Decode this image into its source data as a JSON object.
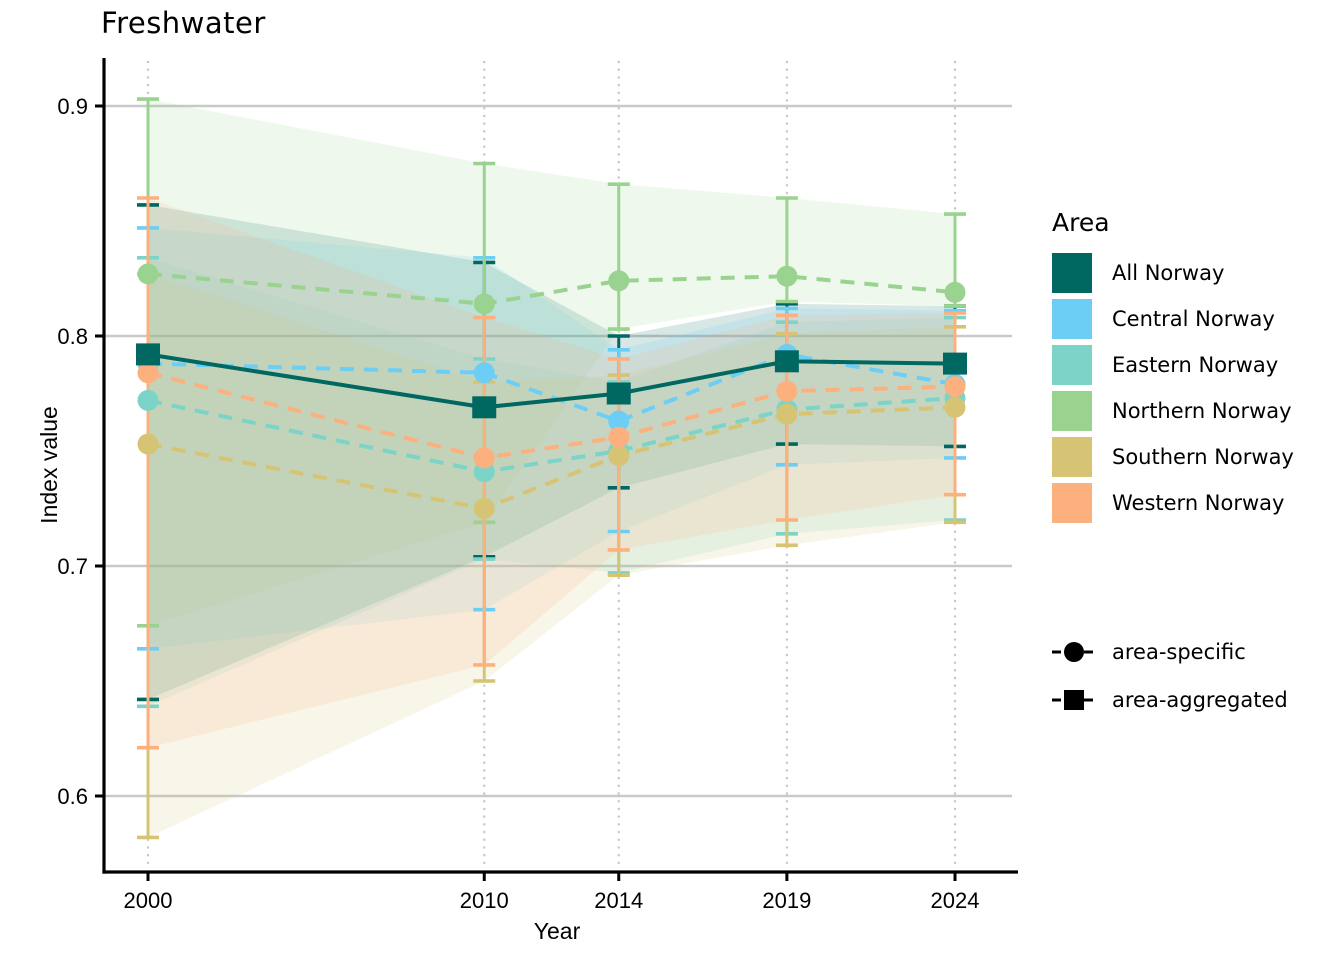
{
  "title": "Freshwater",
  "x_axis": {
    "label": "Year",
    "ticks": [
      "2000",
      "2010",
      "2014",
      "2019",
      "2024"
    ],
    "tick_years": [
      2000,
      2010,
      2014,
      2019,
      2024
    ]
  },
  "y_axis": {
    "label": "Index value",
    "ticks": [
      "0.9",
      "0.8",
      "0.7",
      "0.6"
    ],
    "tick_values": [
      0.9,
      0.8,
      0.7,
      0.6
    ]
  },
  "legend": {
    "title": "Area",
    "items": [
      {
        "label": "All Norway",
        "color": "#006861"
      },
      {
        "label": "Central Norway",
        "color": "#6CCEF5"
      },
      {
        "label": "Eastern Norway",
        "color": "#7BD4C7"
      },
      {
        "label": "Northern Norway",
        "color": "#99D38F"
      },
      {
        "label": "Southern Norway",
        "color": "#D6C474"
      },
      {
        "label": "Western Norway",
        "color": "#FCB07D"
      }
    ]
  },
  "marker_legend": [
    {
      "marker": "circle",
      "label": "area-specific"
    },
    {
      "marker": "square",
      "label": "area-aggregated"
    }
  ],
  "colors": {
    "grid": "#c9c9c9",
    "grid_dotted": "#c6c6c6",
    "axis": "#000000"
  },
  "chart_data": {
    "type": "line",
    "title": "Freshwater",
    "xlabel": "Year",
    "ylabel": "Index value",
    "x": [
      2000,
      2010,
      2014,
      2019,
      2024
    ],
    "ylim": [
      0.565,
      0.92
    ],
    "grid": "horizontal solid gray at 0.6-0.9, vertical dotted at year ticks",
    "legend_position": "right",
    "series": [
      {
        "name": "All Norway",
        "group": "area-aggregated",
        "color": "#006861",
        "line": "solid",
        "marker": "square",
        "values": [
          0.792,
          0.769,
          0.775,
          0.789,
          0.788
        ],
        "err_low": [
          0.642,
          0.704,
          0.734,
          0.753,
          0.752
        ],
        "err_high": [
          0.857,
          0.832,
          0.8,
          0.814,
          0.813
        ]
      },
      {
        "name": "Central Norway",
        "group": "area-specific",
        "color": "#6CCEF5",
        "line": "dashed",
        "marker": "circle",
        "values": [
          0.788,
          0.784,
          0.763,
          0.792,
          0.779
        ],
        "err_low": [
          0.664,
          0.681,
          0.715,
          0.744,
          0.747
        ],
        "err_high": [
          0.847,
          0.834,
          0.794,
          0.812,
          0.811
        ]
      },
      {
        "name": "Eastern Norway",
        "group": "area-specific",
        "color": "#7BD4C7",
        "line": "dashed",
        "marker": "circle",
        "values": [
          0.772,
          0.741,
          0.75,
          0.768,
          0.773
        ],
        "err_low": [
          0.639,
          0.703,
          0.697,
          0.714,
          0.72
        ],
        "err_high": [
          0.834,
          0.79,
          0.78,
          0.806,
          0.808
        ]
      },
      {
        "name": "Northern Norway",
        "group": "area-specific",
        "color": "#99D38F",
        "line": "dashed",
        "marker": "circle",
        "values": [
          0.827,
          0.814,
          0.824,
          0.826,
          0.819
        ],
        "err_low": [
          0.674,
          0.719,
          0.803,
          0.815,
          0.813
        ],
        "err_high": [
          0.903,
          0.875,
          0.866,
          0.86,
          0.853
        ]
      },
      {
        "name": "Southern Norway",
        "group": "area-specific",
        "color": "#D6C474",
        "line": "dashed",
        "marker": "circle",
        "values": [
          0.753,
          0.725,
          0.748,
          0.766,
          0.769
        ],
        "err_low": [
          0.582,
          0.65,
          0.696,
          0.709,
          0.719
        ],
        "err_high": [
          0.827,
          0.78,
          0.783,
          0.801,
          0.804
        ]
      },
      {
        "name": "Western Norway",
        "group": "area-specific",
        "color": "#FCB07D",
        "line": "dashed",
        "marker": "circle",
        "values": [
          0.784,
          0.747,
          0.756,
          0.776,
          0.778
        ],
        "err_low": [
          0.621,
          0.657,
          0.707,
          0.72,
          0.731
        ],
        "err_high": [
          0.86,
          0.808,
          0.79,
          0.809,
          0.81
        ]
      }
    ]
  }
}
